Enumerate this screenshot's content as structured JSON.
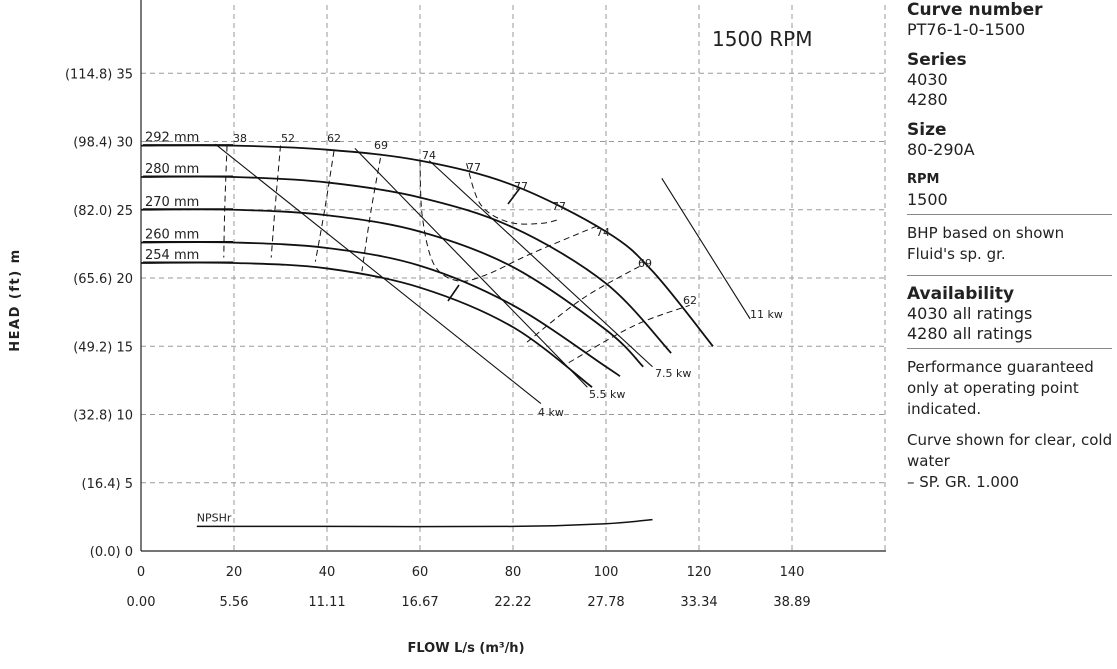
{
  "chart_data": {
    "type": "line",
    "speed_label": "1500 RPM",
    "ylabel": "HEAD (ft) m",
    "xlabel": "FLOW L/s (m³/h)",
    "xlim": [
      0,
      160
    ],
    "ylim": [
      0,
      40
    ],
    "x_ticks": [
      "0",
      "20",
      "40",
      "60",
      "80",
      "100",
      "120",
      "140"
    ],
    "x_ticks_m3h": [
      "0.00",
      "5.56",
      "11.11",
      "16.67",
      "22.22",
      "27.78",
      "33.34",
      "38.89"
    ],
    "y_ticks": [
      "(0.0) 0",
      "(16.4) 5",
      "(32.8) 10",
      "(49.2) 15",
      "(65.6) 20",
      "(82.0) 25",
      "(98.4) 30",
      "(114.8) 35"
    ],
    "series": [
      {
        "name": "292 mm",
        "x": [
          0,
          20,
          40,
          60,
          80,
          100,
          110,
          123
        ],
        "y": [
          29.7,
          29.7,
          29.4,
          28.6,
          26.8,
          23.4,
          20.5,
          15.0
        ]
      },
      {
        "name": "280 mm",
        "x": [
          0,
          20,
          40,
          60,
          80,
          100,
          114
        ],
        "y": [
          27.4,
          27.4,
          27.0,
          25.9,
          23.7,
          19.6,
          14.5
        ]
      },
      {
        "name": "270 mm",
        "x": [
          0,
          20,
          40,
          60,
          80,
          100,
          108
        ],
        "y": [
          25.0,
          25.0,
          24.6,
          23.4,
          20.8,
          16.2,
          13.5
        ]
      },
      {
        "name": "260 mm",
        "x": [
          0,
          20,
          40,
          60,
          80,
          100,
          103
        ],
        "y": [
          22.6,
          22.6,
          22.2,
          20.9,
          18.0,
          13.5,
          12.8
        ]
      },
      {
        "name": "254 mm",
        "x": [
          0,
          20,
          40,
          60,
          80,
          97
        ],
        "y": [
          21.1,
          21.1,
          20.7,
          19.3,
          16.4,
          12.0
        ]
      }
    ],
    "efficiency_labels": [
      "38",
      "52",
      "62",
      "69",
      "74",
      "77",
      "77",
      "77",
      "74",
      "69",
      "62"
    ],
    "power_curves": [
      {
        "name": "4 kw",
        "x": [
          16,
          86
        ],
        "y": [
          29.8,
          10.8
        ]
      },
      {
        "name": "5.5 kw",
        "x": [
          46,
          96
        ],
        "y": [
          29.5,
          12.0
        ]
      },
      {
        "name": "7.5 kw",
        "x": [
          62,
          110
        ],
        "y": [
          28.6,
          13.5
        ]
      },
      {
        "name": "11 kw",
        "x": [
          112,
          131
        ],
        "y": [
          27.3,
          17.0
        ]
      }
    ],
    "npshr": {
      "name": "NPSHr",
      "x": [
        12,
        40,
        80,
        100,
        110
      ],
      "y": [
        1.8,
        1.8,
        1.8,
        2.0,
        2.3
      ]
    }
  },
  "info": {
    "curve_number_label": "Curve number",
    "curve_number": "PT76-1-0-1500",
    "series_label": "Series",
    "series_1": "4030",
    "series_2": "4280",
    "size_label": "Size",
    "size": "80-290A",
    "rpm_label": "RPM",
    "rpm": "1500",
    "bhp_note_1": "BHP based on shown",
    "bhp_note_2": "Fluid's sp. gr.",
    "availability_label": "Availability",
    "availability_1": "4030  all ratings",
    "availability_2": "4280  all ratings",
    "performance_note": "Performance guaranteed only at operating point indicated.",
    "water_note_1": "Curve shown for clear, cold water",
    "water_note_2": "– SP. GR. 1.000"
  }
}
